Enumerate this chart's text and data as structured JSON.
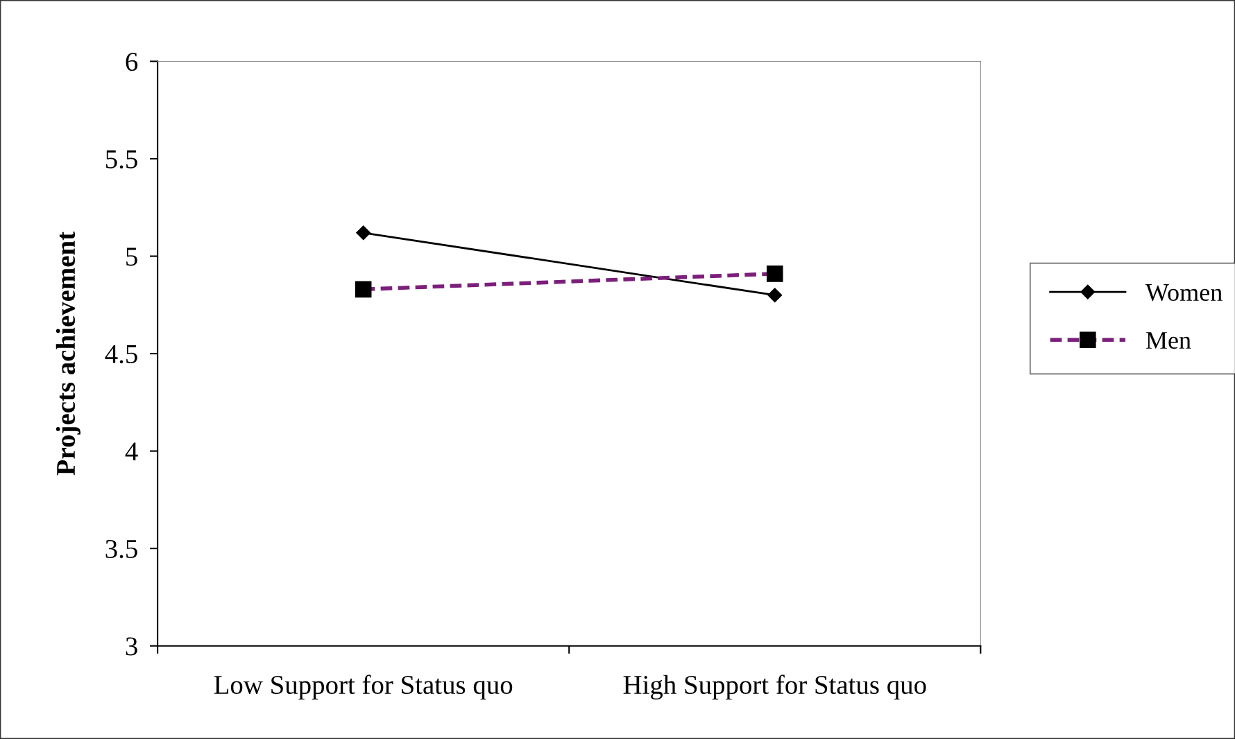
{
  "chart_data": {
    "type": "line",
    "ylabel": "Projects achievement",
    "categories": [
      "Low Support for Status quo",
      "High Support for Status quo"
    ],
    "series": [
      {
        "name": "Women",
        "color": "#000000",
        "values": [
          5.12,
          4.8
        ],
        "marker": "diamond",
        "line_style": "solid"
      },
      {
        "name": "Men",
        "color": "#7b1f7b",
        "values": [
          4.83,
          4.91
        ],
        "marker": "square",
        "line_style": "dashed"
      }
    ],
    "ylim": [
      3,
      6
    ],
    "yticks": [
      3,
      3.5,
      4,
      4.5,
      5,
      5.5,
      6
    ],
    "grid": false,
    "legend": "right"
  }
}
